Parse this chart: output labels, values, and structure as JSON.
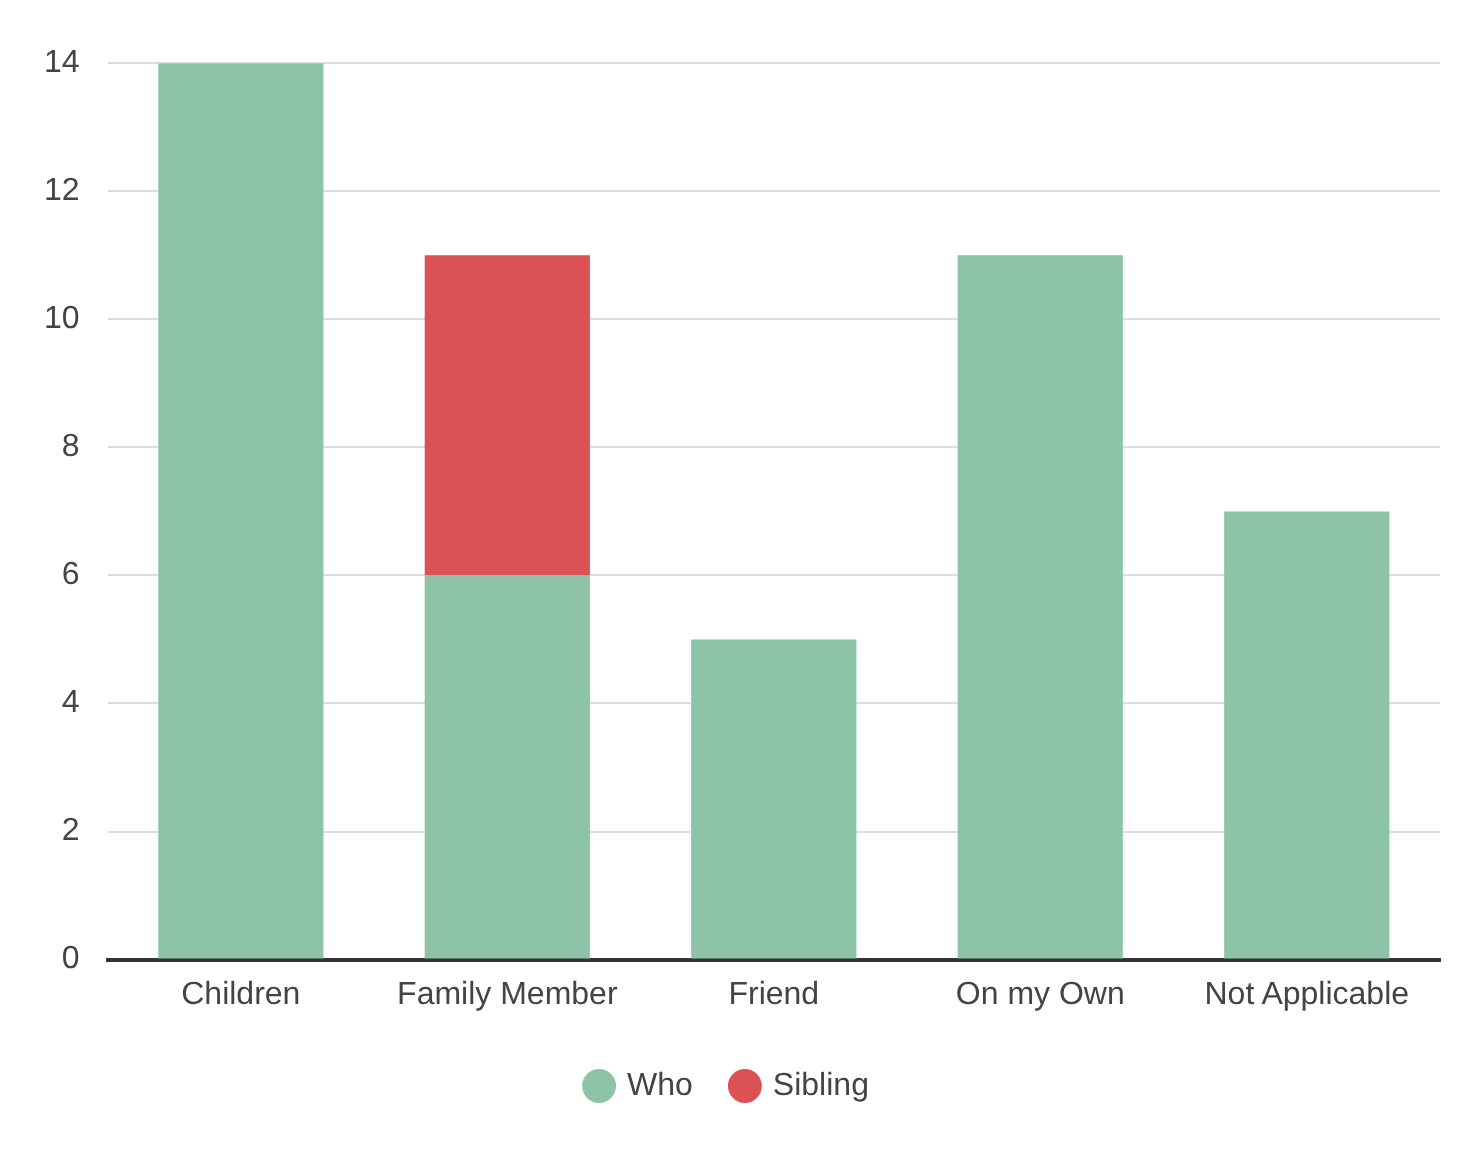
{
  "chart_data": {
    "type": "bar",
    "stacked": true,
    "categories": [
      "Children",
      "Family Member",
      "Friend",
      "On my Own",
      "Not Applicable"
    ],
    "series": [
      {
        "name": "Who",
        "color": "#8dc3a7",
        "values": [
          14,
          6,
          5,
          11,
          7
        ]
      },
      {
        "name": "Sibling",
        "color": "#dc5254",
        "values": [
          null,
          5,
          null,
          null,
          null
        ]
      }
    ],
    "ylim": [
      0,
      14
    ],
    "yticks": [
      0,
      2,
      4,
      6,
      8,
      10,
      12,
      14
    ],
    "grid": "y",
    "legend": "bottom",
    "marker": "circle"
  }
}
